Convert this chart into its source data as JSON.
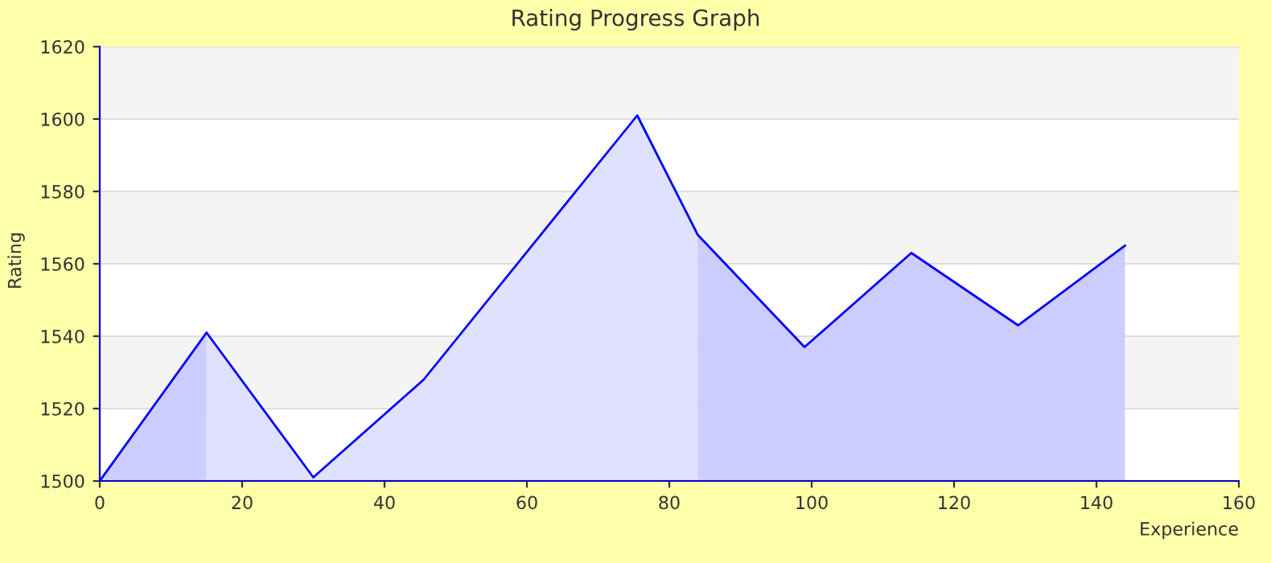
{
  "chart_data": {
    "type": "area",
    "title": "Rating Progress Graph",
    "xlabel": "Experience",
    "ylabel": "Rating",
    "series": [
      {
        "color": "#ccccff",
        "x": [
          0,
          15,
          15
        ],
        "values": [
          1500,
          1541,
          1500
        ]
      },
      {
        "color": "#e0e0ff",
        "x": [
          15,
          30,
          45.5,
          75.5,
          84
        ],
        "values": [
          1541,
          1501,
          1528,
          1601,
          1568
        ]
      },
      {
        "color": "#ccccff",
        "x": [
          84,
          99,
          114,
          129,
          144
        ],
        "values": [
          1568,
          1537,
          1563,
          1543,
          1565
        ]
      },
      {
        "type": "line",
        "color": "#0000ff",
        "x": [
          0,
          15,
          30,
          45.5,
          75.5,
          84,
          99,
          114,
          129,
          144
        ],
        "values": [
          1500,
          1541,
          1501,
          1528,
          1601,
          1568,
          1537,
          1563,
          1543,
          1565
        ]
      }
    ],
    "bands": [
      {
        "axis": "y",
        "from": 1520,
        "to": 1540,
        "color": "#f4f4f4"
      },
      {
        "axis": "y",
        "from": 1560,
        "to": 1580,
        "color": "#f4f4f4"
      },
      {
        "axis": "y",
        "from": 1600,
        "to": 1620,
        "color": "#f4f4f4"
      }
    ],
    "xlim": [
      0,
      160
    ],
    "ylim": [
      1500,
      1620
    ],
    "xticks": [
      0,
      20,
      40,
      60,
      80,
      100,
      120,
      140,
      160
    ],
    "yticks": [
      1500,
      1520,
      1540,
      1560,
      1580,
      1600,
      1620
    ],
    "grid": "y",
    "legend": false
  }
}
